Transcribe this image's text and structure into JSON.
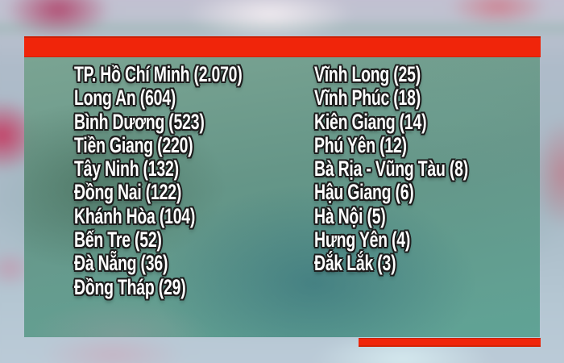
{
  "colors": {
    "bar_red": "#f0250a",
    "panel_teal": "#5f9488",
    "text": "#ffffff",
    "text_outline": "#1d1d1d"
  },
  "panel": {
    "columns": [
      {
        "items": [
          {
            "name": "TP. Hồ Chí Minh",
            "value": "2.070"
          },
          {
            "name": "Long An",
            "value": "604"
          },
          {
            "name": "Bình Dương",
            "value": "523"
          },
          {
            "name": "Tiền Giang",
            "value": "220"
          },
          {
            "name": "Tây Ninh",
            "value": "132"
          },
          {
            "name": "Đồng Nai",
            "value": "122"
          },
          {
            "name": "Khánh Hòa",
            "value": "104"
          },
          {
            "name": "Bến Tre",
            "value": "52"
          },
          {
            "name": "Đà Nẵng",
            "value": "36"
          },
          {
            "name": "Đồng Tháp",
            "value": "29"
          }
        ]
      },
      {
        "items": [
          {
            "name": "Vĩnh Long",
            "value": "25"
          },
          {
            "name": "Vĩnh Phúc",
            "value": "18"
          },
          {
            "name": "Kiên Giang",
            "value": "14"
          },
          {
            "name": "Phú Yên",
            "value": "12"
          },
          {
            "name": "Bà Rịa - Vũng Tàu",
            "value": "8"
          },
          {
            "name": "Hậu Giang",
            "value": "6"
          },
          {
            "name": "Hà Nội",
            "value": "5"
          },
          {
            "name": "Hưng Yên",
            "value": "4"
          },
          {
            "name": "Đắk Lắk",
            "value": "3"
          }
        ]
      }
    ]
  },
  "chart_data": {
    "type": "table",
    "title": "",
    "categories": [
      "TP. Hồ Chí Minh",
      "Long An",
      "Bình Dương",
      "Tiền Giang",
      "Tây Ninh",
      "Đồng Nai",
      "Khánh Hòa",
      "Bến Tre",
      "Đà Nẵng",
      "Đồng Tháp",
      "Vĩnh Long",
      "Vĩnh Phúc",
      "Kiên Giang",
      "Phú Yên",
      "Bà Rịa - Vũng Tàu",
      "Hậu Giang",
      "Hà Nội",
      "Hưng Yên",
      "Đắk Lắk"
    ],
    "values": [
      2070,
      604,
      523,
      220,
      132,
      122,
      104,
      52,
      36,
      29,
      25,
      18,
      14,
      12,
      8,
      6,
      5,
      4,
      3
    ],
    "value_labels": [
      "2.070",
      "604",
      "523",
      "220",
      "132",
      "122",
      "104",
      "52",
      "36",
      "29",
      "25",
      "18",
      "14",
      "12",
      "8",
      "6",
      "5",
      "4",
      "3"
    ],
    "layout": "two-column province list on translucent teal panel over blurred backdrop, red bar above panel and short red bar at bottom right"
  }
}
